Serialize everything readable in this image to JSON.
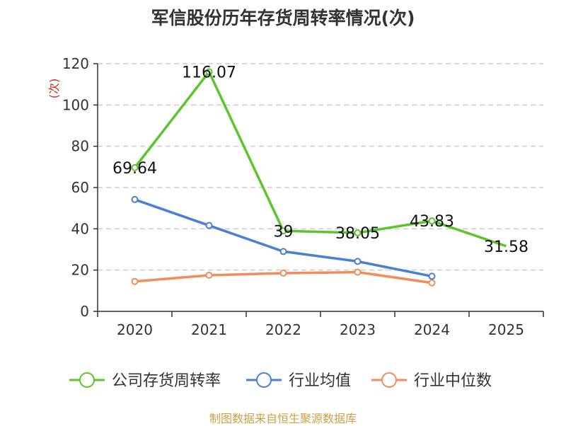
{
  "chart_data": {
    "type": "line",
    "title": "军信股份历年存货周转率情况(次)",
    "ylabel": "(次)",
    "xlabel": "",
    "ylim": [
      0,
      120
    ],
    "yticks": [
      0,
      20,
      40,
      60,
      80,
      100,
      120
    ],
    "categories": [
      "2020",
      "2021",
      "2022",
      "2023",
      "2024",
      "2025"
    ],
    "series": [
      {
        "name": "公司存货周转率",
        "color": "#5cc42d",
        "values": [
          69.64,
          116.07,
          39,
          38.05,
          43.83,
          31.58
        ],
        "labels": [
          "69.64",
          "116.07",
          "39",
          "38.05",
          "43.83",
          "31.58"
        ],
        "markers": true
      },
      {
        "name": "行业均值",
        "color": "#4b7fd6",
        "values": [
          54.2,
          41.6,
          29,
          24.2,
          17,
          null
        ],
        "markers": true
      },
      {
        "name": "行业中位数",
        "color": "#f28c5c",
        "values": [
          14.5,
          17.5,
          18.5,
          19,
          13.8,
          null
        ],
        "markers": true
      }
    ],
    "grid": true,
    "legend_position": "bottom"
  },
  "source": "制图数据来自恒生聚源数据库"
}
